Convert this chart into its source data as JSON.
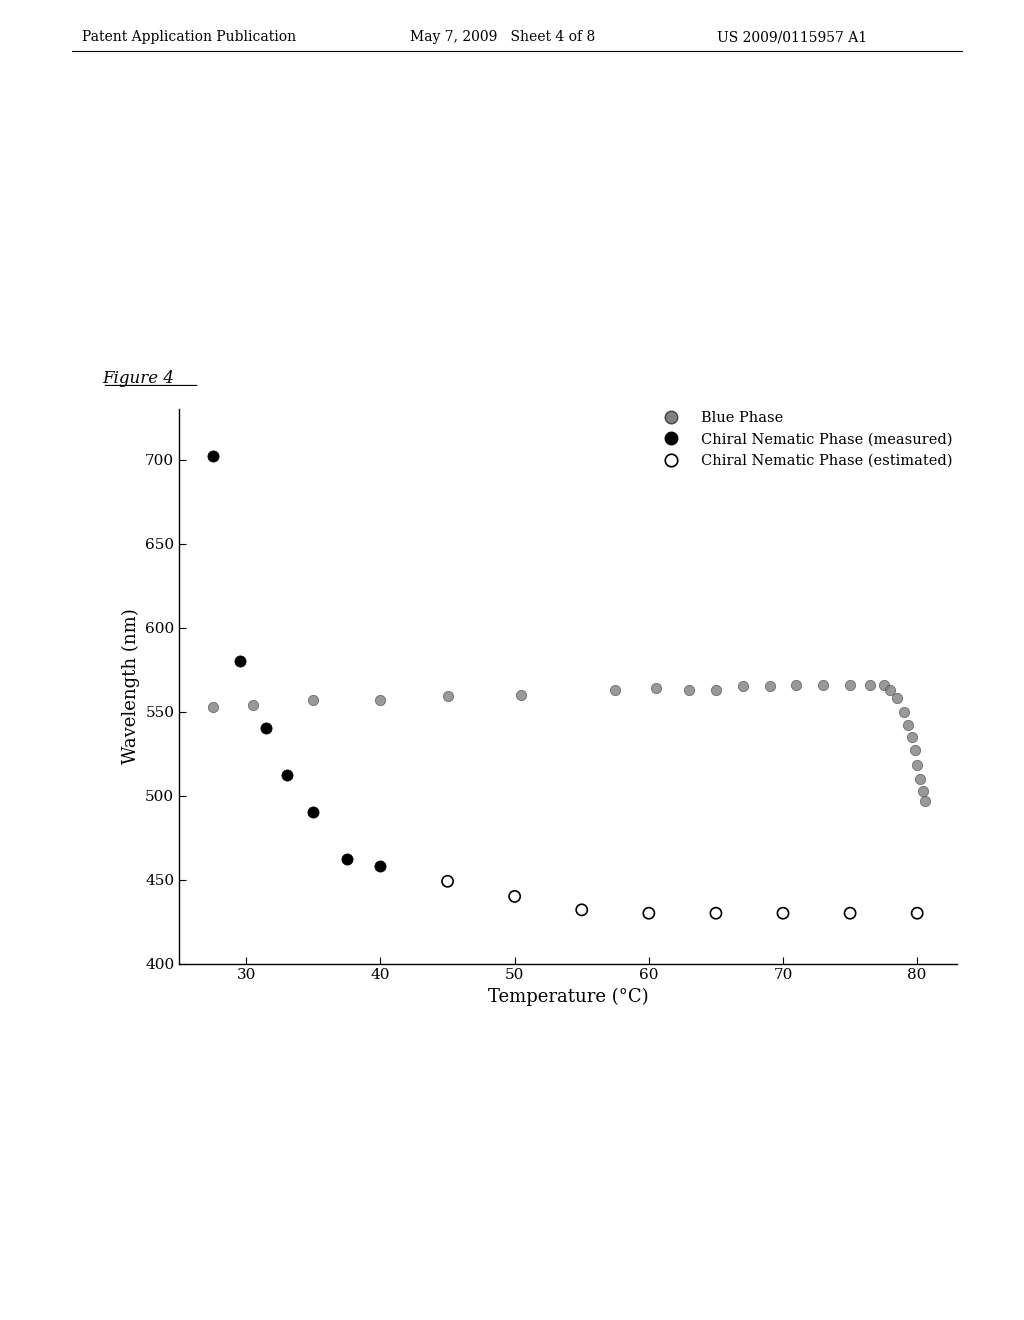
{
  "header_left": "Patent Application Publication",
  "header_mid": "May 7, 2009   Sheet 4 of 8",
  "header_right": "US 2009/0115957 A1",
  "figure_label": "Figure 4",
  "xlabel": "Temperature (°C)",
  "ylabel": "Wavelength (nm)",
  "xlim": [
    25,
    83
  ],
  "ylim": [
    400,
    730
  ],
  "xticks": [
    30,
    40,
    50,
    60,
    70,
    80
  ],
  "yticks": [
    400,
    450,
    500,
    550,
    600,
    650,
    700
  ],
  "background_color": "#ffffff",
  "blue_phase_x": [
    27.5,
    30.5,
    35.0,
    40.0,
    45.0,
    50.5,
    57.5,
    60.5,
    63.0,
    65.0,
    67.0,
    69.0,
    71.0,
    73.0,
    75.0,
    76.5,
    77.5,
    78.0,
    78.5,
    79.0,
    79.3,
    79.6,
    79.8,
    80.0,
    80.2,
    80.4,
    80.6
  ],
  "blue_phase_y": [
    553,
    554,
    557,
    557,
    559,
    560,
    563,
    564,
    563,
    563,
    565,
    565,
    566,
    566,
    566,
    566,
    566,
    563,
    558,
    550,
    542,
    535,
    527,
    518,
    510,
    503,
    497
  ],
  "chiral_nematic_measured_x": [
    27.5,
    29.5,
    31.5,
    33.0,
    35.0,
    37.5,
    40.0
  ],
  "chiral_nematic_measured_y": [
    702,
    580,
    540,
    512,
    490,
    462,
    458
  ],
  "chiral_nematic_estimated_x": [
    45.0,
    50.0,
    55.0,
    60.0,
    65.0,
    70.0,
    75.0,
    80.0
  ],
  "chiral_nematic_estimated_y": [
    449,
    440,
    432,
    430,
    430,
    430,
    430,
    430
  ],
  "legend_labels": [
    "Blue Phase",
    "Chiral Nematic Phase (measured)",
    "Chiral Nematic Phase (estimated)"
  ],
  "blue_phase_color": "#808080",
  "chiral_nematic_measured_color": "#000000",
  "chiral_nematic_estimated_color": "#000000"
}
